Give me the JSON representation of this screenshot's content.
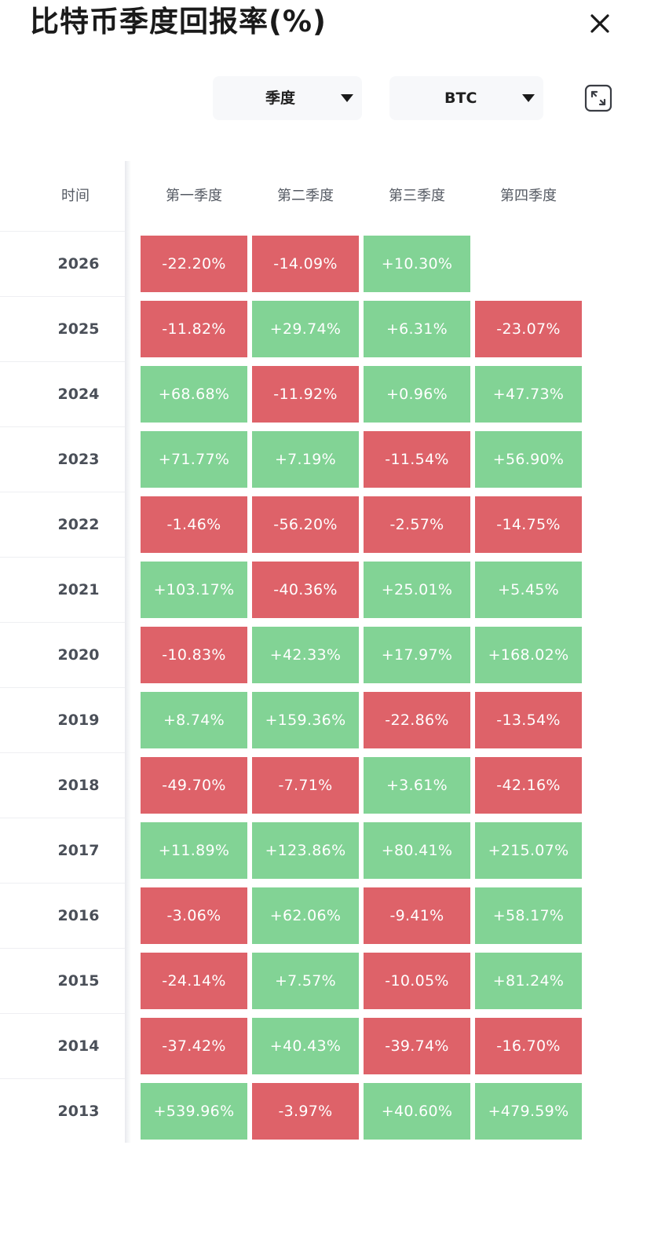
{
  "title": "比特币季度回报率(%)",
  "icons": {
    "close": "close-icon",
    "expand": "expand-icon",
    "caret": "caret-down-icon"
  },
  "filters": {
    "period": "季度",
    "coin": "BTC"
  },
  "colors": {
    "positive": "#82d395",
    "negative": "#de6269"
  },
  "table": {
    "time_header": "时间",
    "quarter_headers": [
      "第一季度",
      "第二季度",
      "第三季度",
      "第四季度"
    ],
    "rows": [
      {
        "year": "2026",
        "values": [
          "-22.20%",
          "-14.09%",
          "+10.30%",
          ""
        ]
      },
      {
        "year": "2025",
        "values": [
          "-11.82%",
          "+29.74%",
          "+6.31%",
          "-23.07%"
        ]
      },
      {
        "year": "2024",
        "values": [
          "+68.68%",
          "-11.92%",
          "+0.96%",
          "+47.73%"
        ]
      },
      {
        "year": "2023",
        "values": [
          "+71.77%",
          "+7.19%",
          "-11.54%",
          "+56.90%"
        ]
      },
      {
        "year": "2022",
        "values": [
          "-1.46%",
          "-56.20%",
          "-2.57%",
          "-14.75%"
        ]
      },
      {
        "year": "2021",
        "values": [
          "+103.17%",
          "-40.36%",
          "+25.01%",
          "+5.45%"
        ]
      },
      {
        "year": "2020",
        "values": [
          "-10.83%",
          "+42.33%",
          "+17.97%",
          "+168.02%"
        ]
      },
      {
        "year": "2019",
        "values": [
          "+8.74%",
          "+159.36%",
          "-22.86%",
          "-13.54%"
        ]
      },
      {
        "year": "2018",
        "values": [
          "-49.70%",
          "-7.71%",
          "+3.61%",
          "-42.16%"
        ]
      },
      {
        "year": "2017",
        "values": [
          "+11.89%",
          "+123.86%",
          "+80.41%",
          "+215.07%"
        ]
      },
      {
        "year": "2016",
        "values": [
          "-3.06%",
          "+62.06%",
          "-9.41%",
          "+58.17%"
        ]
      },
      {
        "year": "2015",
        "values": [
          "-24.14%",
          "+7.57%",
          "-10.05%",
          "+81.24%"
        ]
      },
      {
        "year": "2014",
        "values": [
          "-37.42%",
          "+40.43%",
          "-39.74%",
          "-16.70%"
        ]
      },
      {
        "year": "2013",
        "values": [
          "+539.96%",
          "-3.97%",
          "+40.60%",
          "+479.59%"
        ]
      }
    ]
  }
}
